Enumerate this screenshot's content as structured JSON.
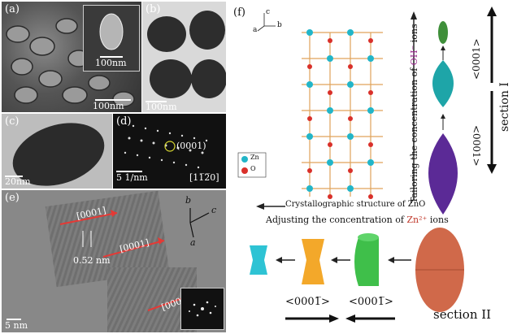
{
  "panels": {
    "a": {
      "label": "(a)",
      "scale_main": "100nm",
      "scale_inset": "100nm"
    },
    "b": {
      "label": "(b)",
      "scale": "100nm"
    },
    "c": {
      "label": "(c)",
      "scale": "20nm"
    },
    "d": {
      "label": "(d)",
      "spot": "(0001)",
      "scale": "5 1/nm",
      "zone": "[11̅2̅0]"
    },
    "e": {
      "label": "(e)",
      "arrows": [
        "[0001]",
        "[0001]",
        "[0001]"
      ],
      "spacing": "0.52 nm",
      "scale": "5 nm",
      "axes": [
        "b",
        "c",
        "a"
      ]
    },
    "f": {
      "label": "(f)",
      "axes": [
        "c",
        "a",
        "b"
      ],
      "legend": [
        "Zn",
        "O"
      ],
      "crystal_caption": "Crystallographic structure  of ZnO",
      "vertical_text_prefix": "Tailoring the concentration of ",
      "vertical_text_ion": "OH⁻",
      "vertical_text_suffix": " ions",
      "horizontal_text_prefix": "Adjusting the concentration of ",
      "horizontal_text_ion": "Zn²⁺",
      "horizontal_text_suffix": " ions",
      "dir_up": "<0001>",
      "dir_down": "<0001>",
      "section1": "section I",
      "dir_left1": "<0001̅>",
      "dir_left2": "<0001̅>",
      "section2": "section II"
    }
  },
  "colors": {
    "oh": "#9b2a8f",
    "zn": "#c0392b",
    "zn_atom": "#22b5c8",
    "o_atom": "#d9302a",
    "bond": "#e0a25a"
  }
}
